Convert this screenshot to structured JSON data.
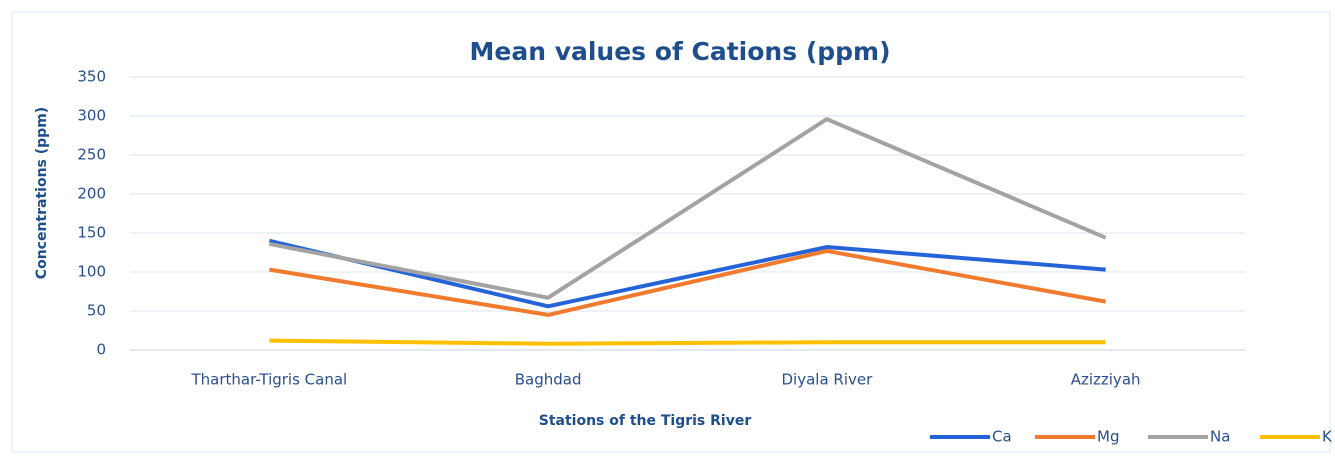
{
  "chart_data": {
    "type": "line",
    "title": "Mean values of Cations (ppm)",
    "x_label": "Stations of the Tigris River",
    "y_label": "Concentrations  (ppm)",
    "categories": [
      "Tharthar-Tigris Canal",
      "Baghdad",
      "Diyala River",
      "Azizziyah"
    ],
    "series": [
      {
        "name": "Ca",
        "color": "#2563d8",
        "values": [
          140,
          56,
          132,
          103
        ]
      },
      {
        "name": "Mg",
        "color": "#f07b2f",
        "values": [
          103,
          45,
          127,
          62
        ]
      },
      {
        "name": "Na",
        "color": "#a3a3a3",
        "values": [
          136,
          67,
          296,
          144
        ]
      },
      {
        "name": "K",
        "color": "#ffc000",
        "values": [
          12,
          8,
          10,
          10
        ]
      }
    ],
    "ylim": [
      0,
      350
    ],
    "yticks": [
      0,
      50,
      100,
      150,
      200,
      250,
      300,
      350
    ],
    "grid": true,
    "legend": "bottom-right"
  }
}
